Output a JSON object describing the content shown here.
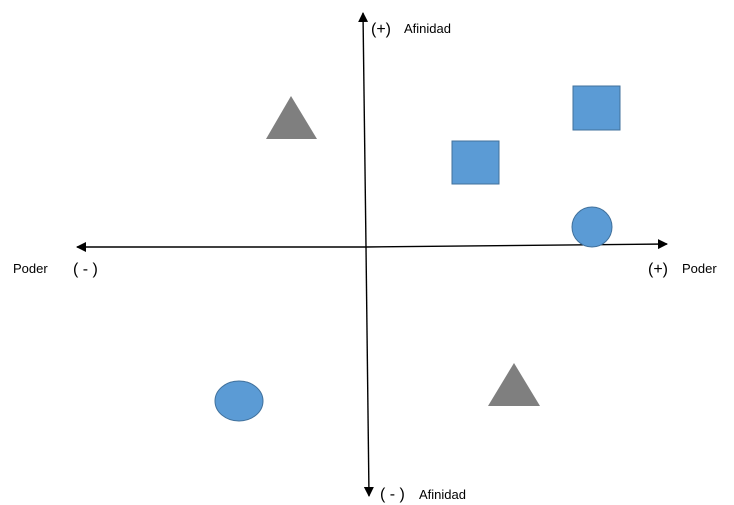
{
  "labels": {
    "y_positive_sign": "(+)",
    "y_positive_text": "Afinidad",
    "y_negative_sign": "( - )",
    "y_negative_text": "Afinidad",
    "x_negative_text": "Poder",
    "x_negative_sign": "( - )",
    "x_positive_sign": "(+)",
    "x_positive_text": "Poder"
  },
  "colors": {
    "square_fill": "#5b9bd5",
    "circle_fill": "#5b9bd5",
    "triangle_fill": "#7f7f7f",
    "axis": "#000000"
  },
  "shapes": [
    {
      "kind": "triangle",
      "name": "triangle-top-left"
    },
    {
      "kind": "square",
      "name": "square-top-right"
    },
    {
      "kind": "square",
      "name": "square-middle-right"
    },
    {
      "kind": "circle",
      "name": "circle-right"
    },
    {
      "kind": "circle",
      "name": "circle-bottom-left"
    },
    {
      "kind": "triangle",
      "name": "triangle-bottom-right"
    }
  ]
}
